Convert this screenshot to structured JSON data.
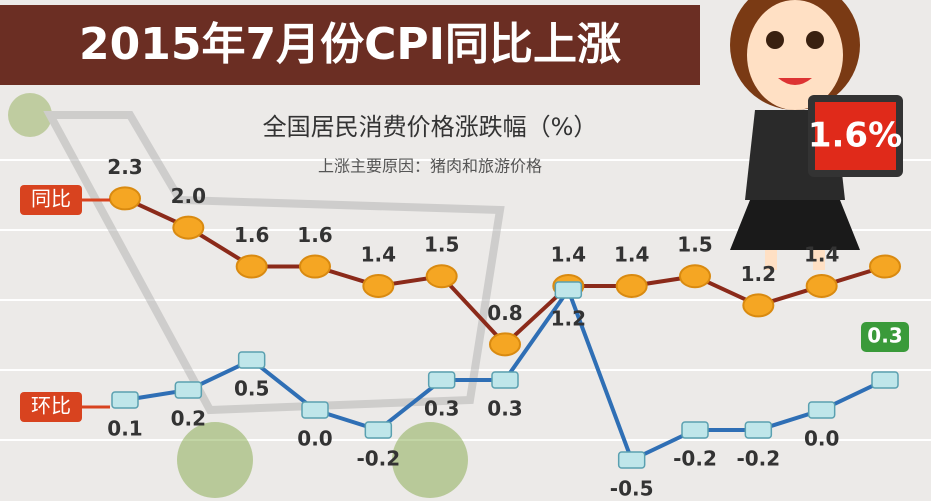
{
  "chart_data": {
    "type": "line",
    "title": "2015年7月份CPI同比上涨",
    "subtitle": "全国居民消费价格涨跌幅（%）",
    "note": "上涨主要原因：猪肉和旅游价格",
    "categories": [
      null,
      null,
      null,
      null,
      null,
      null,
      null,
      null,
      null,
      null,
      null,
      null,
      null
    ],
    "ylim": [
      -0.8,
      2.9
    ],
    "y2lim": [
      -0.9,
      2.7
    ],
    "series": [
      {
        "name": "同比",
        "color": "#8b2a1a",
        "values": [
          2.3,
          2.0,
          1.6,
          1.6,
          1.4,
          1.5,
          0.8,
          1.4,
          1.4,
          1.5,
          1.2,
          1.4,
          1.6
        ],
        "value_labels": [
          "2.3",
          "2.0",
          "1.6",
          "1.6",
          "1.4",
          "1.5",
          "0.8",
          "1.4",
          "1.4",
          "1.5",
          "1.2",
          "1.4",
          "1.6%"
        ]
      },
      {
        "name": "环比",
        "color": "#2f6fb5",
        "axis": "y2",
        "values": [
          0.1,
          0.2,
          0.5,
          0.0,
          -0.2,
          0.3,
          0.3,
          1.2,
          -0.5,
          -0.2,
          -0.2,
          0.0,
          0.3
        ],
        "value_labels": [
          "0.1",
          "0.2",
          "0.5",
          "0.0",
          "-0.2",
          "0.3",
          "0.3",
          "1.2",
          "-0.5",
          "-0.2",
          "-0.2",
          "0.0",
          "0.3"
        ]
      }
    ]
  }
}
